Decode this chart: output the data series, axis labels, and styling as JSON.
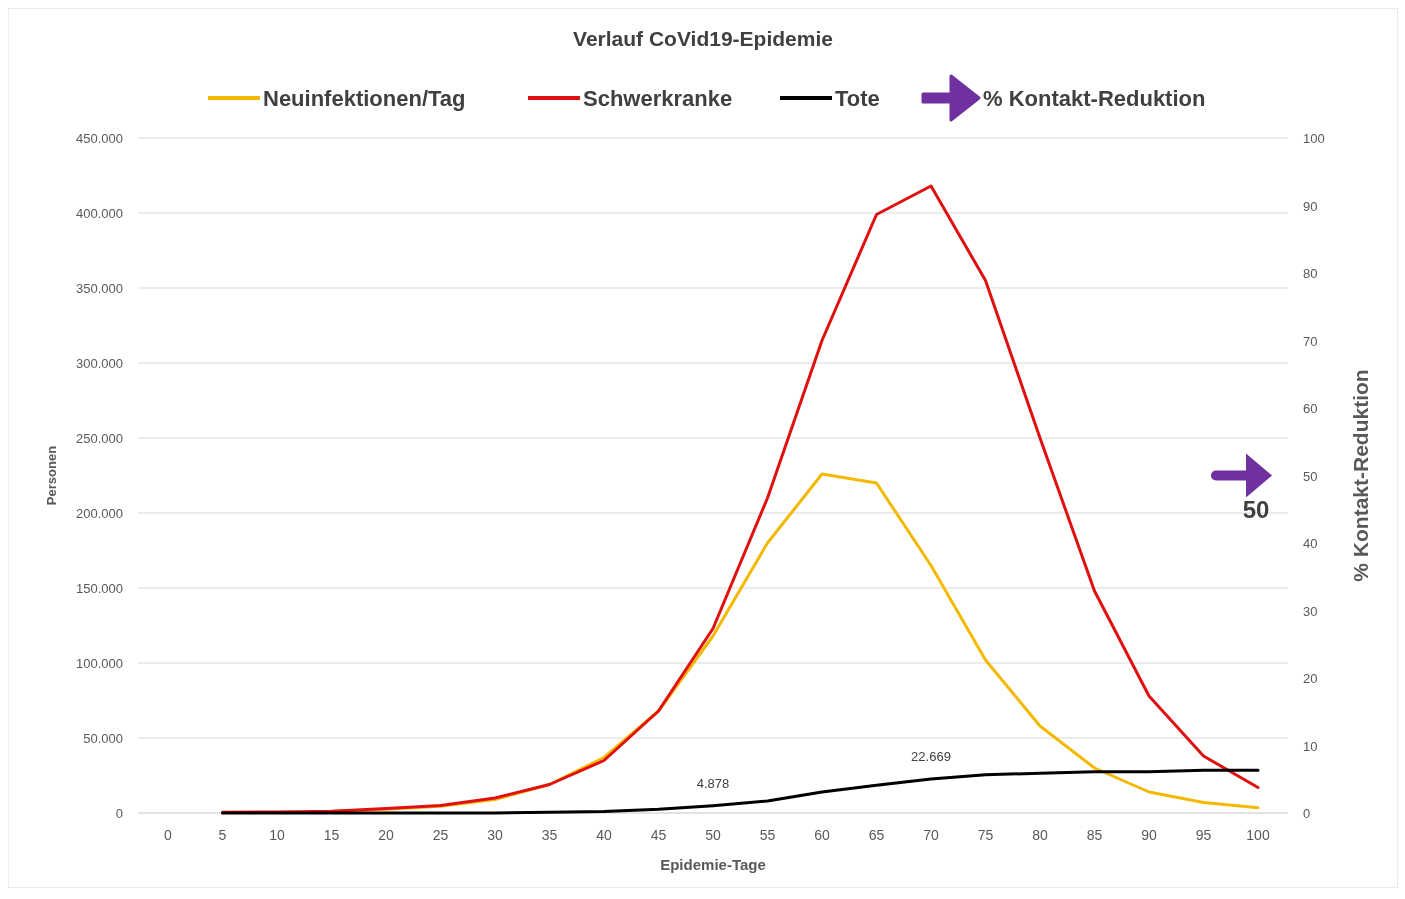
{
  "chart_data": {
    "type": "line",
    "title": "Verlauf CoVid19-Epidemie",
    "xlabel": "Epidemie-Tage",
    "ylabel": "Personen",
    "y2label": "% Kontakt-Reduktion",
    "categories": [
      "0",
      "5",
      "10",
      "15",
      "20",
      "25",
      "30",
      "35",
      "40",
      "45",
      "50",
      "55",
      "60",
      "65",
      "70",
      "75",
      "80",
      "85",
      "90",
      "95",
      "100"
    ],
    "series": [
      {
        "name": "Neuinfektionen/Tag",
        "color": "#f5b800",
        "values": [
          null,
          null,
          null,
          1000,
          2500,
          4500,
          9000,
          19000,
          37000,
          68000,
          118000,
          180000,
          226000,
          220000,
          165000,
          102000,
          58000,
          30000,
          14000,
          7000,
          3500
        ]
      },
      {
        "name": "Schwerkranke",
        "color": "#e01010",
        "values": [
          null,
          500,
          700,
          1200,
          3000,
          5000,
          10000,
          19000,
          35000,
          68000,
          123000,
          210000,
          315000,
          399000,
          418000,
          355000,
          250000,
          148000,
          78000,
          38000,
          17000
        ]
      },
      {
        "name": "Tote",
        "color": "#000000",
        "values": [
          null,
          0,
          0,
          0,
          0,
          0,
          0,
          500,
          1000,
          2500,
          4878,
          8000,
          14000,
          18500,
          22669,
          25500,
          26500,
          27500,
          27500,
          28500,
          28500
        ],
        "value_labels": [
          null,
          null,
          null,
          null,
          null,
          null,
          null,
          null,
          null,
          null,
          "4.878",
          null,
          null,
          null,
          "22.669",
          null,
          null,
          null,
          null,
          null,
          null
        ]
      },
      {
        "name": "% Kontakt-Reduktion",
        "color": "#7030a0",
        "type": "scatter",
        "axis": "y2",
        "marker": "triangle",
        "values": [
          null,
          null,
          null,
          null,
          null,
          null,
          null,
          null,
          null,
          null,
          null,
          null,
          null,
          null,
          null,
          null,
          null,
          null,
          null,
          null,
          50
        ],
        "value_labels": [
          null,
          null,
          null,
          null,
          null,
          null,
          null,
          null,
          null,
          null,
          null,
          null,
          null,
          null,
          null,
          null,
          null,
          null,
          null,
          null,
          "50"
        ]
      }
    ],
    "ylim": [
      0,
      450000
    ],
    "yticks": [
      {
        "value": 0,
        "label": "0"
      },
      {
        "value": 50000,
        "label": "50.000"
      },
      {
        "value": 100000,
        "label": "100.000"
      },
      {
        "value": 150000,
        "label": "150.000"
      },
      {
        "value": 200000,
        "label": "200.000"
      },
      {
        "value": 250000,
        "label": "250.000"
      },
      {
        "value": 300000,
        "label": "300.000"
      },
      {
        "value": 350000,
        "label": "350.000"
      },
      {
        "value": 400000,
        "label": "400.000"
      },
      {
        "value": 450000,
        "label": "450.000"
      }
    ],
    "y2lim": [
      0,
      100
    ],
    "y2ticks": [
      0,
      10,
      20,
      30,
      40,
      50,
      60,
      70,
      80,
      90,
      100
    ],
    "grid": "y",
    "legend": "top"
  }
}
